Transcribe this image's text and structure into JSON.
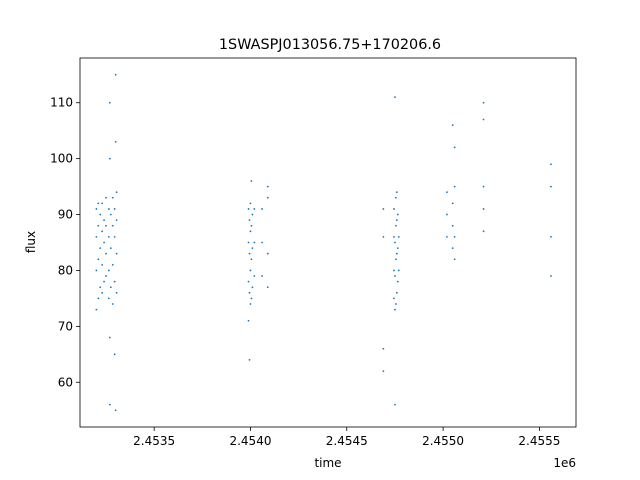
{
  "chart_data": {
    "type": "scatter",
    "title": "1SWASPJ013056.75+170206.6",
    "xlabel": "time",
    "ylabel": "flux",
    "x_offset_label": "1e6",
    "xlim": [
      2453115,
      2455690
    ],
    "ylim": [
      52,
      118
    ],
    "x_ticks": [
      {
        "value": 2453500,
        "label": "2.4535"
      },
      {
        "value": 2454000,
        "label": "2.4540"
      },
      {
        "value": 2454500,
        "label": "2.4545"
      },
      {
        "value": 2455000,
        "label": "2.4550"
      },
      {
        "value": 2455500,
        "label": "2.4555"
      }
    ],
    "y_ticks": [
      {
        "value": 60,
        "label": "60"
      },
      {
        "value": 70,
        "label": "70"
      },
      {
        "value": 80,
        "label": "80"
      },
      {
        "value": 90,
        "label": "90"
      },
      {
        "value": 100,
        "label": "100"
      },
      {
        "value": 110,
        "label": "110"
      }
    ],
    "grid": false,
    "marker_color": "#1f77b4",
    "series": [
      {
        "points": [
          [
            2453200,
            73
          ],
          [
            2453200,
            80
          ],
          [
            2453200,
            86
          ],
          [
            2453200,
            91
          ],
          [
            2453210,
            75
          ],
          [
            2453210,
            82
          ],
          [
            2453210,
            88
          ],
          [
            2453210,
            92
          ],
          [
            2453220,
            77
          ],
          [
            2453220,
            84
          ],
          [
            2453220,
            90
          ],
          [
            2453230,
            76
          ],
          [
            2453230,
            81
          ],
          [
            2453230,
            87
          ],
          [
            2453230,
            92
          ],
          [
            2453240,
            78
          ],
          [
            2453240,
            85
          ],
          [
            2453240,
            89
          ],
          [
            2453250,
            79
          ],
          [
            2453250,
            83
          ],
          [
            2453250,
            88
          ],
          [
            2453250,
            93
          ],
          [
            2453265,
            75
          ],
          [
            2453265,
            80
          ],
          [
            2453265,
            86
          ],
          [
            2453265,
            91
          ],
          [
            2453270,
            56
          ],
          [
            2453270,
            68
          ],
          [
            2453270,
            100
          ],
          [
            2453270,
            110
          ],
          [
            2453275,
            77
          ],
          [
            2453275,
            84
          ],
          [
            2453275,
            90
          ],
          [
            2453285,
            74
          ],
          [
            2453285,
            81
          ],
          [
            2453285,
            88
          ],
          [
            2453285,
            93
          ],
          [
            2453295,
            65
          ],
          [
            2453295,
            78
          ],
          [
            2453295,
            86
          ],
          [
            2453295,
            91
          ],
          [
            2453300,
            55
          ],
          [
            2453300,
            103
          ],
          [
            2453300,
            115
          ],
          [
            2453305,
            76
          ],
          [
            2453305,
            83
          ],
          [
            2453305,
            89
          ],
          [
            2453305,
            94
          ],
          [
            2453990,
            71
          ],
          [
            2453990,
            78
          ],
          [
            2453990,
            85
          ],
          [
            2453990,
            91
          ],
          [
            2453995,
            64
          ],
          [
            2453995,
            76
          ],
          [
            2453995,
            83
          ],
          [
            2453995,
            89
          ],
          [
            2454000,
            74
          ],
          [
            2454000,
            80
          ],
          [
            2454000,
            87
          ],
          [
            2454000,
            92
          ],
          [
            2454005,
            75
          ],
          [
            2454005,
            82
          ],
          [
            2454005,
            88
          ],
          [
            2454005,
            96
          ],
          [
            2454010,
            77
          ],
          [
            2454010,
            84
          ],
          [
            2454010,
            90
          ],
          [
            2454020,
            79
          ],
          [
            2454020,
            85
          ],
          [
            2454020,
            91
          ],
          [
            2454060,
            79
          ],
          [
            2454060,
            85
          ],
          [
            2454060,
            91
          ],
          [
            2454090,
            77
          ],
          [
            2454090,
            83
          ],
          [
            2454090,
            93
          ],
          [
            2454090,
            95
          ],
          [
            2454690,
            62
          ],
          [
            2454690,
            66
          ],
          [
            2454690,
            86
          ],
          [
            2454690,
            91
          ],
          [
            2454745,
            75
          ],
          [
            2454745,
            80
          ],
          [
            2454745,
            86
          ],
          [
            2454745,
            91
          ],
          [
            2454750,
            56
          ],
          [
            2454750,
            73
          ],
          [
            2454750,
            79
          ],
          [
            2454750,
            85
          ],
          [
            2454750,
            111
          ],
          [
            2454755,
            74
          ],
          [
            2454755,
            82
          ],
          [
            2454755,
            88
          ],
          [
            2454755,
            93
          ],
          [
            2454760,
            76
          ],
          [
            2454760,
            83
          ],
          [
            2454760,
            89
          ],
          [
            2454760,
            94
          ],
          [
            2454765,
            78
          ],
          [
            2454765,
            84
          ],
          [
            2454765,
            90
          ],
          [
            2454770,
            80
          ],
          [
            2454770,
            86
          ],
          [
            2455020,
            86
          ],
          [
            2455020,
            90
          ],
          [
            2455020,
            94
          ],
          [
            2455050,
            84
          ],
          [
            2455050,
            88
          ],
          [
            2455050,
            92
          ],
          [
            2455050,
            106
          ],
          [
            2455060,
            82
          ],
          [
            2455060,
            86
          ],
          [
            2455060,
            95
          ],
          [
            2455060,
            102
          ],
          [
            2455210,
            87
          ],
          [
            2455210,
            91
          ],
          [
            2455210,
            95
          ],
          [
            2455210,
            107
          ],
          [
            2455210,
            110
          ],
          [
            2455560,
            79
          ],
          [
            2455560,
            86
          ],
          [
            2455560,
            95
          ],
          [
            2455560,
            99
          ]
        ]
      }
    ]
  }
}
